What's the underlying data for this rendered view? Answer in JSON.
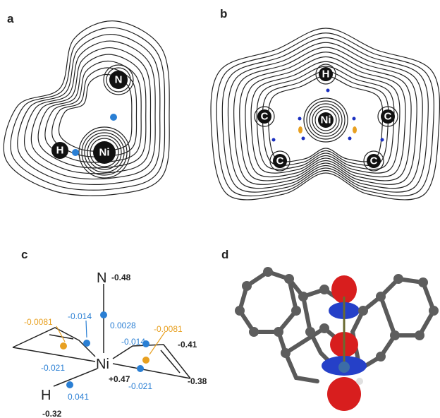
{
  "panels": [
    {
      "label": "a",
      "atoms": [
        "N",
        "H",
        "Ni"
      ]
    },
    {
      "label": "b",
      "atoms": [
        "H",
        "Ni",
        "C",
        "C",
        "C",
        "C"
      ]
    },
    {
      "label": "c",
      "labels": [
        "N",
        "-0.48",
        "-0.0081",
        "-0.014",
        "0.0028",
        "-0.014",
        "-0.0081",
        "-0.41",
        "-0.021",
        "Ni",
        "+0.47",
        "-0.021",
        "-0.38",
        "H",
        "0.041",
        "-0.32"
      ]
    },
    {
      "label": "d"
    }
  ]
}
